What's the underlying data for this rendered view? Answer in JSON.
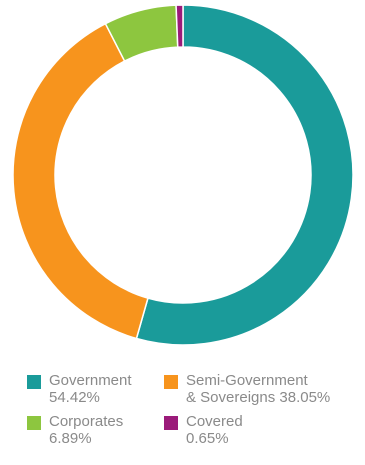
{
  "chart_data": {
    "type": "pie",
    "style": "donut",
    "title": "",
    "series": [
      {
        "name": "Government",
        "value": 54.42,
        "label_lines": [
          "Government",
          "54.42%"
        ],
        "color": "#1a9b9a"
      },
      {
        "name": "Semi-Government & Sovereigns",
        "value": 38.05,
        "label_lines": [
          "Semi-Government",
          "& Sovereigns 38.05%"
        ],
        "color": "#f7941d"
      },
      {
        "name": "Corporates",
        "value": 6.89,
        "label_lines": [
          "Corporates",
          "6.89%"
        ],
        "color": "#8dc63f"
      },
      {
        "name": "Covered",
        "value": 0.65,
        "label_lines": [
          "Covered",
          "0.65%"
        ],
        "color": "#9b1b7a"
      }
    ],
    "legend_position": "bottom",
    "start_angle": "top",
    "direction": "clockwise"
  }
}
